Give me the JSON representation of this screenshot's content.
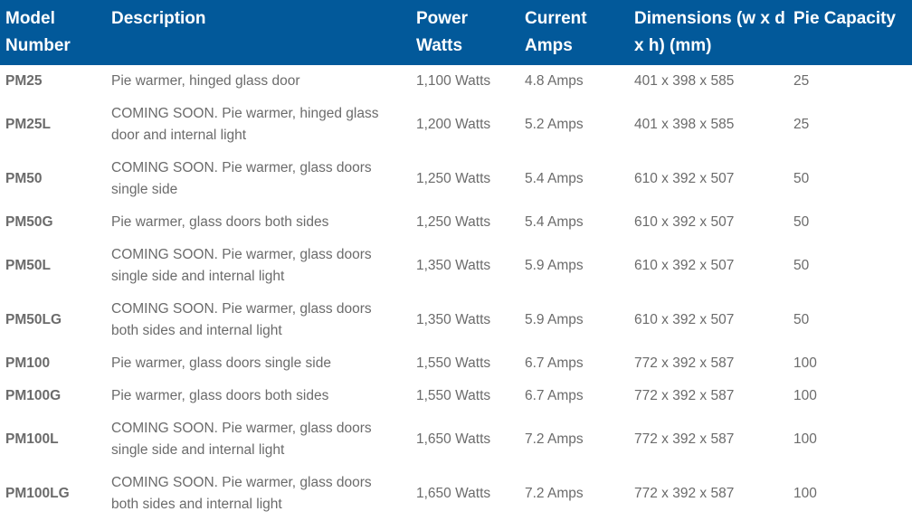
{
  "headers": [
    "Model Number",
    "Description",
    "Power Watts",
    "Current Amps",
    "Dimensions (w x d x h) (mm)",
    "Pie Capacity"
  ],
  "header_color": "#02599a",
  "rows": [
    {
      "model": "PM25",
      "description": "Pie warmer, hinged glass door",
      "power": "1,100 Watts",
      "current": "4.8 Amps",
      "dimensions": "401 x 398 x 585",
      "capacity": "25"
    },
    {
      "model": "PM25L",
      "description": "COMING SOON. Pie warmer, hinged glass door and internal light",
      "power": "1,200 Watts",
      "current": "5.2 Amps",
      "dimensions": "401 x 398 x 585",
      "capacity": "25"
    },
    {
      "model": "PM50",
      "description": "COMING SOON. Pie warmer, glass doors single side",
      "power": "1,250 Watts",
      "current": "5.4 Amps",
      "dimensions": "610 x 392 x 507",
      "capacity": "50"
    },
    {
      "model": "PM50G",
      "description": "Pie warmer, glass doors both sides",
      "power": "1,250 Watts",
      "current": "5.4 Amps",
      "dimensions": "610 x 392 x 507",
      "capacity": "50"
    },
    {
      "model": "PM50L",
      "description": "COMING SOON. Pie warmer, glass doors single side and internal light",
      "power": "1,350 Watts",
      "current": "5.9 Amps",
      "dimensions": "610 x 392 x 507",
      "capacity": "50"
    },
    {
      "model": "PM50LG",
      "description": "COMING SOON. Pie warmer, glass doors both sides and internal light",
      "power": "1,350 Watts",
      "current": "5.9 Amps",
      "dimensions": "610 x 392 x 507",
      "capacity": "50"
    },
    {
      "model": "PM100",
      "description": "Pie warmer, glass doors single side",
      "power": "1,550 Watts",
      "current": "6.7 Amps",
      "dimensions": "772 x 392 x 587",
      "capacity": "100"
    },
    {
      "model": "PM100G",
      "description": "Pie warmer, glass doors both sides",
      "power": "1,550 Watts",
      "current": "6.7 Amps",
      "dimensions": "772 x 392 x 587",
      "capacity": "100"
    },
    {
      "model": "PM100L",
      "description": "COMING SOON. Pie warmer, glass doors single side and internal light",
      "power": "1,650 Watts",
      "current": "7.2 Amps",
      "dimensions": "772 x 392 x 587",
      "capacity": "100"
    },
    {
      "model": "PM100LG",
      "description": "COMING SOON. Pie warmer, glass doors both sides and internal light",
      "power": "1,650 Watts",
      "current": "7.2 Amps",
      "dimensions": "772 x 392 x 587",
      "capacity": "100"
    }
  ]
}
